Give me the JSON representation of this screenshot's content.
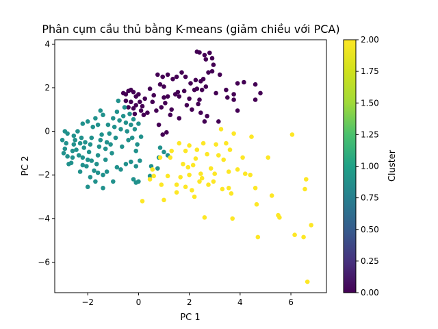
{
  "chart_data": {
    "type": "scatter",
    "title": "Phân cụm cầu thủ bằng K-means (giảm chiều với PCA)",
    "xlabel": "PC 1",
    "ylabel": "PC 2",
    "xlim": [
      -3.3,
      7.4
    ],
    "ylim": [
      -7.4,
      4.2
    ],
    "xticks": [
      -2,
      0,
      2,
      4,
      6
    ],
    "xtick_labels": [
      "−2",
      "0",
      "2",
      "4",
      "6"
    ],
    "yticks": [
      -6,
      -4,
      -2,
      0,
      2,
      4
    ],
    "ytick_labels": [
      "−6",
      "−4",
      "−2",
      "0",
      "2",
      "4"
    ],
    "grid": false,
    "colorbar": {
      "label": "Cluster",
      "colormap": "viridis",
      "range": [
        0,
        2
      ],
      "ticks": [
        0,
        0.25,
        0.5,
        0.75,
        1.0,
        1.25,
        1.5,
        1.75,
        2.0
      ],
      "tick_labels": [
        "0.00",
        "0.25",
        "0.50",
        "0.75",
        "1.00",
        "1.25",
        "1.50",
        "1.75",
        "2.00"
      ]
    },
    "colors": {
      "cluster_0": "#440154",
      "cluster_1": "#21918c",
      "cluster_2": "#fde725"
    },
    "series": [
      {
        "cluster": 0,
        "points": [
          [
            -0.6,
            1.75
          ],
          [
            -0.5,
            1.7
          ],
          [
            -0.4,
            1.85
          ],
          [
            -0.3,
            1.9
          ],
          [
            -0.2,
            1.8
          ],
          [
            -0.1,
            1.6
          ],
          [
            0.0,
            1.7
          ],
          [
            -0.5,
            1.4
          ],
          [
            -0.3,
            1.35
          ],
          [
            -0.1,
            1.2
          ],
          [
            0.05,
            1.35
          ],
          [
            -0.2,
            1.05
          ],
          [
            0.1,
            0.95
          ],
          [
            -0.4,
            1.1
          ],
          [
            0.2,
            0.75
          ],
          [
            -0.15,
            0.8
          ],
          [
            0.25,
            1.5
          ],
          [
            0.45,
            1.95
          ],
          [
            0.6,
            1.65
          ],
          [
            0.75,
            2.6
          ],
          [
            0.95,
            2.5
          ],
          [
            0.85,
            2.15
          ],
          [
            1.0,
            2.05
          ],
          [
            1.15,
            1.6
          ],
          [
            1.05,
            1.3
          ],
          [
            0.9,
            1.1
          ],
          [
            0.7,
            0.95
          ],
          [
            0.8,
            0.3
          ],
          [
            0.95,
            -0.15
          ],
          [
            1.1,
            -0.05
          ],
          [
            1.25,
            0.75
          ],
          [
            1.3,
            1.0
          ],
          [
            1.45,
            1.7
          ],
          [
            1.6,
            1.6
          ],
          [
            1.35,
            2.4
          ],
          [
            1.5,
            2.5
          ],
          [
            1.15,
            2.6
          ],
          [
            1.7,
            2.7
          ],
          [
            1.85,
            2.5
          ],
          [
            2.05,
            2.2
          ],
          [
            2.25,
            2.35
          ],
          [
            2.2,
            1.9
          ],
          [
            2.3,
            1.95
          ],
          [
            2.45,
            2.3
          ],
          [
            2.55,
            2.4
          ],
          [
            2.65,
            2.05
          ],
          [
            2.5,
            1.9
          ],
          [
            1.9,
            1.2
          ],
          [
            2.1,
            1.0
          ],
          [
            2.35,
            1.25
          ],
          [
            1.8,
            1.85
          ],
          [
            1.55,
            1.8
          ],
          [
            2.0,
            1.5
          ],
          [
            2.45,
            0.85
          ],
          [
            2.6,
            0.45
          ],
          [
            2.7,
            0.7
          ],
          [
            2.3,
            3.65
          ],
          [
            2.4,
            3.62
          ],
          [
            2.6,
            3.5
          ],
          [
            2.65,
            3.3
          ],
          [
            2.8,
            3.6
          ],
          [
            2.9,
            3.35
          ],
          [
            2.95,
            3.05
          ],
          [
            2.9,
            2.75
          ],
          [
            2.75,
            2.7
          ],
          [
            3.2,
            2.6
          ],
          [
            3.05,
            1.75
          ],
          [
            3.45,
            1.9
          ],
          [
            3.75,
            1.7
          ],
          [
            3.75,
            1.45
          ],
          [
            3.9,
            2.2
          ],
          [
            4.15,
            2.25
          ],
          [
            3.9,
            0.95
          ],
          [
            4.6,
            2.15
          ],
          [
            4.8,
            1.75
          ],
          [
            4.6,
            1.45
          ],
          [
            3.5,
            1.55
          ],
          [
            3.15,
            0.45
          ],
          [
            2.4,
            1.45
          ],
          [
            1.6,
            0.6
          ],
          [
            1.0,
            1.55
          ],
          [
            0.55,
            1.35
          ],
          [
            0.35,
            0.85
          ],
          [
            0.15,
            1.15
          ]
        ]
      },
      {
        "cluster": 1,
        "points": [
          [
            -2.9,
            0.0
          ],
          [
            -2.8,
            -0.1
          ],
          [
            -3.0,
            -0.4
          ],
          [
            -2.85,
            -0.55
          ],
          [
            -2.9,
            -0.8
          ],
          [
            -2.95,
            -1.0
          ],
          [
            -2.8,
            -1.15
          ],
          [
            -2.75,
            -1.5
          ],
          [
            -2.6,
            -1.2
          ],
          [
            -2.6,
            -0.9
          ],
          [
            -2.55,
            -0.6
          ],
          [
            -2.5,
            -0.4
          ],
          [
            -2.55,
            -0.2
          ],
          [
            -2.4,
            0.0
          ],
          [
            -2.45,
            -0.85
          ],
          [
            -2.35,
            -1.1
          ],
          [
            -2.3,
            -0.55
          ],
          [
            -2.25,
            -0.3
          ],
          [
            -2.2,
            -1.2
          ],
          [
            -2.15,
            -0.75
          ],
          [
            -2.1,
            -0.5
          ],
          [
            -2.05,
            -1.6
          ],
          [
            -2.0,
            -1.3
          ],
          [
            -1.95,
            -0.95
          ],
          [
            -1.9,
            -0.6
          ],
          [
            -1.85,
            -0.3
          ],
          [
            -1.8,
            0.2
          ],
          [
            -1.75,
            -1.8
          ],
          [
            -1.9,
            -2.1
          ],
          [
            -2.0,
            -2.55
          ],
          [
            -1.7,
            -2.3
          ],
          [
            -1.65,
            -1.5
          ],
          [
            -1.6,
            -1.1
          ],
          [
            -1.55,
            -0.7
          ],
          [
            -1.5,
            -0.4
          ],
          [
            -1.45,
            -0.15
          ],
          [
            -1.4,
            -2.0
          ],
          [
            -1.4,
            -2.6
          ],
          [
            -1.3,
            -1.3
          ],
          [
            -1.3,
            -0.8
          ],
          [
            -1.25,
            -0.5
          ],
          [
            -1.2,
            0.3
          ],
          [
            -1.15,
            -0.1
          ],
          [
            -1.1,
            -0.6
          ],
          [
            -1.05,
            -1.0
          ],
          [
            -1.0,
            0.6
          ],
          [
            -0.95,
            0.2
          ],
          [
            -0.9,
            -0.3
          ],
          [
            -0.85,
            0.9
          ],
          [
            -0.8,
            1.4
          ],
          [
            -0.75,
            0.5
          ],
          [
            -0.7,
            0.1
          ],
          [
            -0.65,
            -0.7
          ],
          [
            -0.6,
            0.7
          ],
          [
            -0.55,
            1.1
          ],
          [
            -0.5,
            0.4
          ],
          [
            -0.45,
            0.0
          ],
          [
            -0.4,
            -0.4
          ],
          [
            -0.35,
            0.8
          ],
          [
            -0.3,
            0.3
          ],
          [
            -0.25,
            -0.3
          ],
          [
            -0.2,
            0.55
          ],
          [
            -0.15,
            0.1
          ],
          [
            -0.1,
            -0.9
          ],
          [
            -0.05,
            -0.6
          ],
          [
            0.0,
            0.35
          ],
          [
            0.1,
            -0.25
          ],
          [
            0.05,
            -1.35
          ],
          [
            -0.1,
            -1.6
          ],
          [
            -0.3,
            -1.4
          ],
          [
            -0.5,
            -1.5
          ],
          [
            -0.7,
            -1.75
          ],
          [
            -0.85,
            -1.65
          ],
          [
            -1.0,
            -2.3
          ],
          [
            -0.2,
            -2.2
          ],
          [
            -0.1,
            -2.35
          ],
          [
            0.0,
            -2.3
          ],
          [
            0.45,
            -2.05
          ],
          [
            0.5,
            -1.6
          ],
          [
            0.75,
            -1.7
          ],
          [
            0.85,
            -0.75
          ],
          [
            1.0,
            -0.95
          ],
          [
            1.15,
            -1.1
          ],
          [
            0.8,
            -1.2
          ],
          [
            -2.2,
            0.35
          ],
          [
            -2.0,
            0.45
          ],
          [
            -1.7,
            0.6
          ],
          [
            -1.5,
            0.95
          ],
          [
            -1.4,
            0.75
          ],
          [
            -1.6,
            0.3
          ],
          [
            -2.3,
            -1.85
          ],
          [
            -2.65,
            -1.45
          ],
          [
            -2.2,
            -1.55
          ],
          [
            -1.85,
            -1.35
          ],
          [
            -1.6,
            -1.9
          ],
          [
            -1.25,
            -1.85
          ]
        ]
      },
      {
        "cluster": 2,
        "points": [
          [
            0.15,
            -3.2
          ],
          [
            0.45,
            -2.2
          ],
          [
            0.55,
            -1.75
          ],
          [
            0.6,
            -2.05
          ],
          [
            0.85,
            -1.2
          ],
          [
            1.0,
            -3.15
          ],
          [
            1.15,
            -2.05
          ],
          [
            1.25,
            -1.2
          ],
          [
            1.3,
            -0.9
          ],
          [
            1.5,
            -2.45
          ],
          [
            1.5,
            -2.8
          ],
          [
            1.65,
            -2.1
          ],
          [
            1.75,
            -1.5
          ],
          [
            1.85,
            -0.9
          ],
          [
            1.95,
            -1.65
          ],
          [
            2.0,
            -2.0
          ],
          [
            2.0,
            -0.65
          ],
          [
            2.1,
            -2.7
          ],
          [
            2.15,
            -1.55
          ],
          [
            2.2,
            -3.0
          ],
          [
            2.3,
            -0.85
          ],
          [
            2.4,
            -2.3
          ],
          [
            2.45,
            -1.95
          ],
          [
            2.5,
            -2.15
          ],
          [
            2.55,
            -0.55
          ],
          [
            2.6,
            -3.95
          ],
          [
            2.7,
            -1.05
          ],
          [
            2.85,
            -1.7
          ],
          [
            2.95,
            -2.3
          ],
          [
            3.05,
            -0.6
          ],
          [
            3.15,
            -1.1
          ],
          [
            3.25,
            0.1
          ],
          [
            3.35,
            -1.3
          ],
          [
            3.45,
            -0.55
          ],
          [
            3.55,
            -2.6
          ],
          [
            3.55,
            -1.85
          ],
          [
            3.6,
            -0.85
          ],
          [
            3.65,
            -2.85
          ],
          [
            3.7,
            -4.0
          ],
          [
            3.75,
            -0.1
          ],
          [
            3.9,
            -1.75
          ],
          [
            4.1,
            -1.2
          ],
          [
            4.2,
            -1.95
          ],
          [
            4.4,
            -2.0
          ],
          [
            4.45,
            -0.25
          ],
          [
            4.6,
            -2.6
          ],
          [
            4.65,
            -3.35
          ],
          [
            4.7,
            -4.85
          ],
          [
            5.1,
            -1.2
          ],
          [
            5.25,
            -2.95
          ],
          [
            5.5,
            -3.85
          ],
          [
            5.55,
            -3.95
          ],
          [
            6.05,
            -0.15
          ],
          [
            6.15,
            -4.75
          ],
          [
            6.5,
            -4.85
          ],
          [
            6.55,
            -2.65
          ],
          [
            6.6,
            -2.2
          ],
          [
            6.65,
            -6.9
          ],
          [
            6.8,
            -4.3
          ],
          [
            1.85,
            -2.55
          ],
          [
            2.75,
            -2.45
          ],
          [
            3.0,
            -1.95
          ],
          [
            0.9,
            -2.45
          ],
          [
            1.6,
            -0.55
          ],
          [
            2.25,
            -1.25
          ],
          [
            3.3,
            -2.65
          ]
        ]
      }
    ]
  }
}
